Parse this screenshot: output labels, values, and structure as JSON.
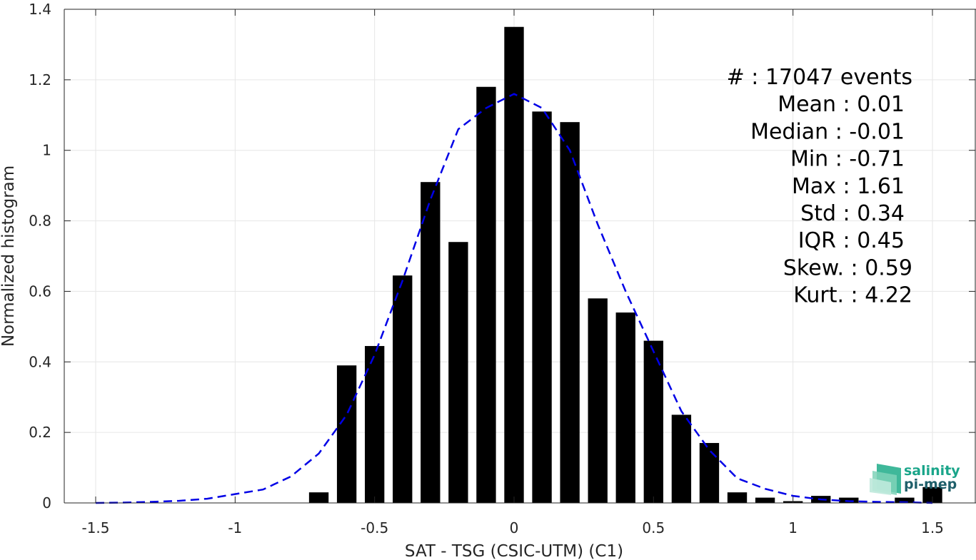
{
  "chart_data": {
    "type": "bar",
    "xlabel": "SAT - TSG (CSIC-UTM) (C1)",
    "ylabel": "Normalized histogram",
    "xlim": [
      -1.5,
      1.5
    ],
    "ylim": [
      0,
      1.4
    ],
    "x_ticks": [
      "-1.5",
      "-1",
      "-0.5",
      "0",
      "0.5",
      "1",
      "1.5"
    ],
    "x_tick_values": [
      -1.5,
      -1,
      -0.5,
      0,
      0.5,
      1,
      1.5
    ],
    "y_ticks": [
      "0",
      "0.2",
      "0.4",
      "0.6",
      "0.8",
      "1",
      "1.2",
      "1.4"
    ],
    "y_tick_values": [
      0,
      0.2,
      0.4,
      0.6,
      0.8,
      1,
      1.2,
      1.4
    ],
    "grid": true,
    "bar_color": "#000000",
    "bar_width": 0.07,
    "bars": {
      "x": [
        -0.7,
        -0.6,
        -0.5,
        -0.4,
        -0.3,
        -0.2,
        -0.1,
        0.0,
        0.1,
        0.2,
        0.3,
        0.4,
        0.5,
        0.6,
        0.7,
        0.8,
        0.9,
        1.0,
        1.1,
        1.2,
        1.3,
        1.4,
        1.5
      ],
      "values": [
        0.03,
        0.39,
        0.445,
        0.645,
        0.91,
        0.74,
        1.18,
        1.35,
        1.11,
        1.08,
        0.58,
        0.54,
        0.46,
        0.25,
        0.17,
        0.03,
        0.015,
        0.005,
        0.02,
        0.015,
        0.0,
        0.015,
        0.045
      ]
    },
    "fit_curve": {
      "color": "#0000e6",
      "style": "dashed",
      "x": [
        -1.5,
        -1.4,
        -1.3,
        -1.2,
        -1.1,
        -1.0,
        -0.9,
        -0.8,
        -0.7,
        -0.6,
        -0.5,
        -0.4,
        -0.3,
        -0.2,
        -0.1,
        0.0,
        0.1,
        0.2,
        0.3,
        0.4,
        0.5,
        0.6,
        0.7,
        0.8,
        0.9,
        1.0,
        1.1,
        1.2,
        1.3,
        1.4,
        1.5
      ],
      "y": [
        0.0,
        0.001,
        0.003,
        0.006,
        0.012,
        0.025,
        0.038,
        0.075,
        0.14,
        0.25,
        0.42,
        0.63,
        0.86,
        1.06,
        1.12,
        1.16,
        1.12,
        1.0,
        0.79,
        0.6,
        0.43,
        0.26,
        0.15,
        0.07,
        0.04,
        0.02,
        0.01,
        0.005,
        0.003,
        0.002,
        0.0
      ]
    },
    "annotations": [
      "#  : 17047 events",
      "Mean : 0.01",
      "Median : -0.01",
      "Min : -0.71",
      "Max : 1.61",
      "Std : 0.34",
      "IQR : 0.45",
      "Skew. : 0.59",
      "Kurt. : 4.22"
    ]
  },
  "logo": {
    "line1": "salinity",
    "line2": "pi-mep",
    "color": "#1aa58a"
  }
}
